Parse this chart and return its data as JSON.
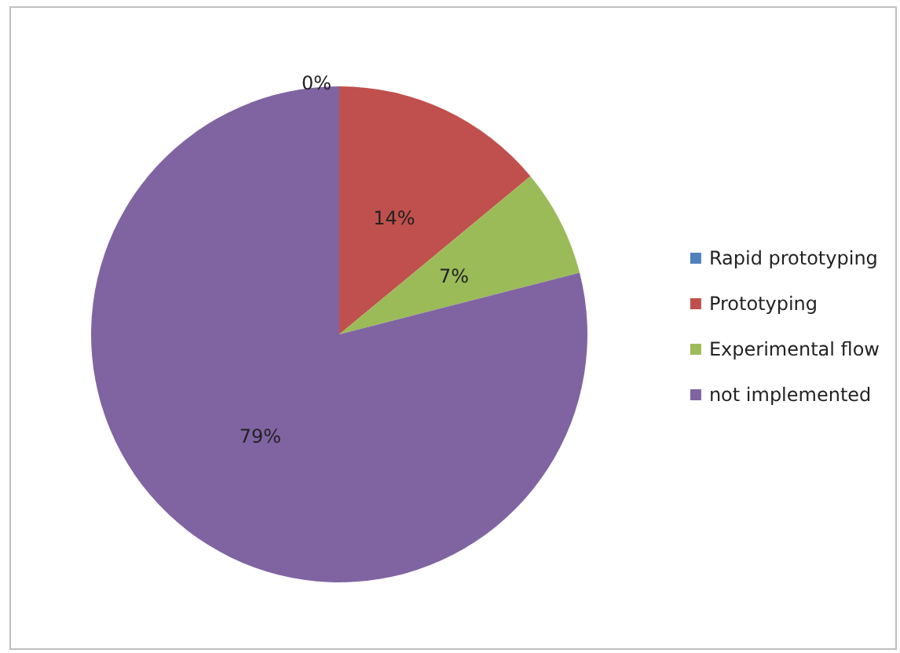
{
  "chart_data": {
    "type": "pie",
    "categories": [
      "Rapid prototyping",
      "Prototyping",
      "Experimental flow",
      "not implemented"
    ],
    "values": [
      0,
      14,
      7,
      79
    ],
    "colors": [
      "#4f81bd",
      "#c0504d",
      "#9bbb59",
      "#8064a2"
    ],
    "value_labels": [
      "0%",
      "14%",
      "7%",
      "79%"
    ],
    "legend": "right"
  }
}
